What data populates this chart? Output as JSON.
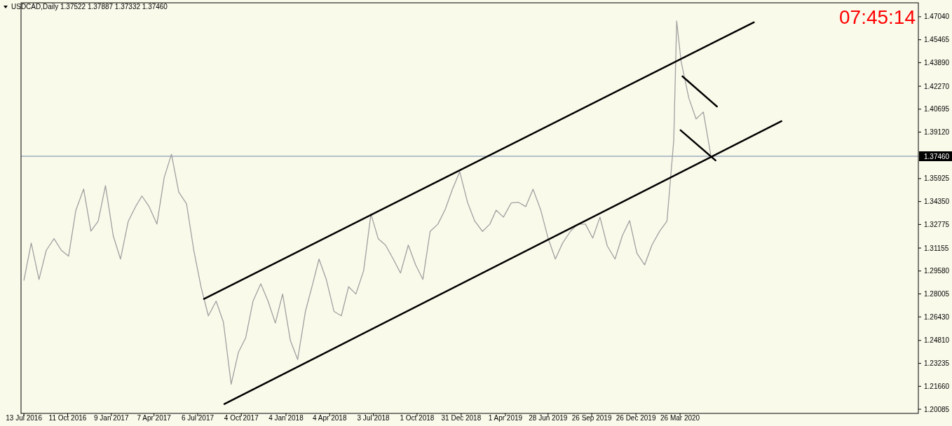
{
  "chart_data": {
    "type": "line",
    "title": "USDCAD,Daily  1.37522 1.37887 1.37332 1.37460",
    "annotations": [
      "07:45:14"
    ],
    "xlim": [
      "2016-07-07",
      "2021-07-30"
    ],
    "xticks": [
      {
        "value": "2016-07-13",
        "label": "13 Jul 2016"
      },
      {
        "value": "2016-10-11",
        "label": "11 Oct 2016"
      },
      {
        "value": "2017-01-09",
        "label": "9 Jan 2017"
      },
      {
        "value": "2017-04-07",
        "label": "7 Apr 2017"
      },
      {
        "value": "2017-07-06",
        "label": "6 Jul 2017"
      },
      {
        "value": "2017-10-04",
        "label": "4 Oct 2017"
      },
      {
        "value": "2018-01-04",
        "label": "4 Jan 2018"
      },
      {
        "value": "2018-04-04",
        "label": "4 Apr 2018"
      },
      {
        "value": "2018-07-03",
        "label": "3 Jul 2018"
      },
      {
        "value": "2018-10-01",
        "label": "1 Oct 2018"
      },
      {
        "value": "2018-12-31",
        "label": "31 Dec 2018"
      },
      {
        "value": "2019-04-01",
        "label": "1 Apr 2019"
      },
      {
        "value": "2019-06-28",
        "label": "28 Jun 2019"
      },
      {
        "value": "2019-09-26",
        "label": "26 Sep 2019"
      },
      {
        "value": "2019-12-26",
        "label": "26 Dec 2019"
      },
      {
        "value": "2020-03-26",
        "label": "26 Mar 2020"
      }
    ],
    "ylim": [
      1.198,
      1.48
    ],
    "yticks": [
      {
        "value": 1.4704,
        "label": "1.47040"
      },
      {
        "value": 1.45465,
        "label": "1.45465"
      },
      {
        "value": 1.4389,
        "label": "1.43890"
      },
      {
        "value": 1.4227,
        "label": "1.42270"
      },
      {
        "value": 1.40695,
        "label": "1.40695"
      },
      {
        "value": 1.3912,
        "label": "1.39120"
      },
      {
        "value": 1.35925,
        "label": "1.35925"
      },
      {
        "value": 1.3435,
        "label": "1.34350"
      },
      {
        "value": 1.32775,
        "label": "1.32775"
      },
      {
        "value": 1.31155,
        "label": "1.31155"
      },
      {
        "value": 1.2958,
        "label": "1.29580"
      },
      {
        "value": 1.28005,
        "label": "1.28005"
      },
      {
        "value": 1.2643,
        "label": "1.26430"
      },
      {
        "value": 1.2481,
        "label": "1.24810"
      },
      {
        "value": 1.23235,
        "label": "1.23235"
      },
      {
        "value": 1.2166,
        "label": "1.21660"
      },
      {
        "value": 1.20085,
        "label": "1.20085"
      }
    ],
    "ref_lines": [
      {
        "axis": "y",
        "value": 1.3746,
        "label": "1.37460",
        "color": "#6f87a8"
      }
    ],
    "series": [
      {
        "color": "#a0a0a0",
        "x": [
          "2016-07-13",
          "2016-07-28",
          "2016-08-13",
          "2016-08-28",
          "2016-09-13",
          "2016-09-28",
          "2016-10-13",
          "2016-10-28",
          "2016-11-13",
          "2016-11-28",
          "2016-12-13",
          "2016-12-28",
          "2017-01-13",
          "2017-01-28",
          "2017-02-13",
          "2017-02-28",
          "2017-03-13",
          "2017-03-28",
          "2017-04-13",
          "2017-04-28",
          "2017-05-13",
          "2017-05-28",
          "2017-06-13",
          "2017-06-28",
          "2017-07-13",
          "2017-07-28",
          "2017-08-13",
          "2017-08-28",
          "2017-09-13",
          "2017-09-28",
          "2017-10-13",
          "2017-10-28",
          "2017-11-13",
          "2017-11-28",
          "2017-12-13",
          "2017-12-28",
          "2018-01-13",
          "2018-01-28",
          "2018-02-13",
          "2018-02-28",
          "2018-03-13",
          "2018-03-28",
          "2018-04-13",
          "2018-04-28",
          "2018-05-13",
          "2018-05-28",
          "2018-06-13",
          "2018-06-28",
          "2018-07-13",
          "2018-07-28",
          "2018-08-13",
          "2018-08-28",
          "2018-09-13",
          "2018-09-28",
          "2018-10-13",
          "2018-10-28",
          "2018-11-13",
          "2018-11-28",
          "2018-12-13",
          "2018-12-28",
          "2019-01-13",
          "2019-01-28",
          "2019-02-13",
          "2019-02-28",
          "2019-03-13",
          "2019-03-28",
          "2019-04-13",
          "2019-04-28",
          "2019-05-13",
          "2019-05-28",
          "2019-06-13",
          "2019-06-28",
          "2019-07-13",
          "2019-07-28",
          "2019-08-13",
          "2019-08-28",
          "2019-09-13",
          "2019-09-28",
          "2019-10-13",
          "2019-10-28",
          "2019-11-13",
          "2019-11-28",
          "2019-12-13",
          "2019-12-28",
          "2020-01-13",
          "2020-01-28",
          "2020-02-13",
          "2020-02-28",
          "2020-03-13",
          "2020-03-19",
          "2020-03-28",
          "2020-04-13",
          "2020-04-28",
          "2020-05-13",
          "2020-05-28"
        ],
        "values": [
          1.2895,
          1.315,
          1.29,
          1.31,
          1.318,
          1.31,
          1.306,
          1.3376,
          1.3521,
          1.3232,
          1.33,
          1.3545,
          1.32,
          1.304,
          1.33,
          1.34,
          1.3473,
          1.34,
          1.328,
          1.36,
          1.376,
          1.35,
          1.342,
          1.31,
          1.2847,
          1.265,
          1.2751,
          1.2607,
          1.218,
          1.24,
          1.25,
          1.2751,
          1.287,
          1.2751,
          1.26,
          1.28,
          1.248,
          1.235,
          1.268,
          1.287,
          1.304,
          1.29,
          1.268,
          1.265,
          1.285,
          1.28,
          1.296,
          1.335,
          1.318,
          1.3136,
          1.304,
          1.2944,
          1.3136,
          1.3,
          1.29,
          1.323,
          1.328,
          1.338,
          1.352,
          1.364,
          1.343,
          1.33,
          1.323,
          1.328,
          1.3376,
          1.3328,
          1.3425,
          1.343,
          1.34,
          1.352,
          1.3376,
          1.3184,
          1.304,
          1.315,
          1.323,
          1.328,
          1.328,
          1.3184,
          1.3328,
          1.313,
          1.304,
          1.32,
          1.3304,
          1.308,
          1.3,
          1.3136,
          1.3232,
          1.33,
          1.3857,
          1.4675,
          1.44,
          1.4146,
          1.4002,
          1.405,
          1.376
        ]
      },
      {
        "color": "#000000",
        "x": [
          "2017-07-19",
          "2020-08-25"
        ],
        "values": [
          1.2766,
          1.4666
        ]
      },
      {
        "color": "#000000",
        "x": [
          "2017-08-30",
          "2020-10-21"
        ],
        "values": [
          1.2044,
          1.3987
        ]
      },
      {
        "color": "#000000",
        "x": [
          "2020-03-31",
          "2020-06-10"
        ],
        "values": [
          1.4295,
          1.4088
        ]
      },
      {
        "color": "#000000",
        "x": [
          "2020-03-27",
          "2020-06-07"
        ],
        "values": [
          1.3925,
          1.3718
        ]
      }
    ]
  }
}
